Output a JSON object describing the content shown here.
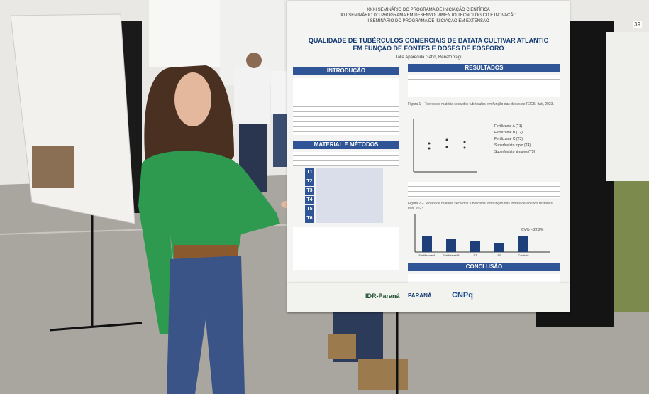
{
  "poster": {
    "header": [
      "XXXI SEMINÁRIO DO PROGRAMA DE INICIAÇÃO CIENTÍFICA",
      "XXI SEMINÁRIO DO PROGRAMA EM DESENVOLVIMENTO TECNOLÓGICO E INOVAÇÃO",
      "I SEMINÁRIO DO PROGRAMA DE INICIAÇÃO EM EXTENSÃO"
    ],
    "title": [
      "QUALIDADE DE TUBÉRCULOS COMERCIAIS DE BATATA CULTIVAR ATLANTIC",
      "EM FUNÇÃO DE FONTES E DOSES DE FÓSFORO"
    ],
    "authors": "Talia Aparecida Gatto, Renato Yagi",
    "sections": {
      "intro": "INTRODUÇÃO",
      "methods": "MATERIAL E MÉTODOS",
      "results": "RESULTADOS",
      "conclusion": "CONCLUSÃO"
    },
    "treatments": [
      "T1",
      "T2",
      "T3",
      "T4",
      "T5",
      "T6"
    ],
    "figure1": {
      "caption": "Figura 1 – Teores de matéria seca dos tubérculos em função das doses de P2O5. Itati, 2023.",
      "legend": [
        "Fertilizante A (T1)",
        "Fertilizante B (T2)",
        "Fertilizante C (T3)",
        "Superfosfato triplo (T4)",
        "Superfosfato simples (T5)"
      ]
    },
    "figure2": {
      "caption": "Figura 2 – Teores de matéria seca dos tubérculos em função das fontes de adubos testadas. Itati, 2023.",
      "cv": "CV% = 22,2%",
      "categories": [
        "Fertilizante A",
        "Fertilizante B",
        "ST",
        "SS",
        "Controle"
      ]
    },
    "logos": [
      "IDR-Paraná",
      "PARANÁ",
      "CNPq"
    ]
  },
  "right_poster": {
    "number": "39"
  }
}
